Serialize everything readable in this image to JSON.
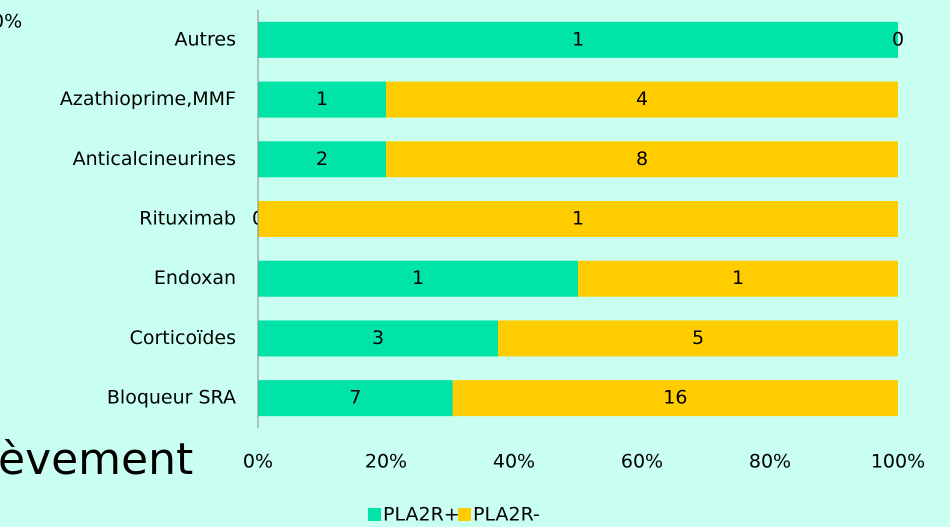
{
  "chart_data": {
    "type": "bar",
    "orientation": "horizontal",
    "stacking": "percent",
    "categories": [
      "Autres",
      "Azathioprime,MMF",
      "Anticalcineurines",
      "Rituximab",
      "Endoxan",
      "Corticoïdes",
      "Bloqueur SRA"
    ],
    "series": [
      {
        "name": "PLA2R+",
        "color": "#00e4a8",
        "values": [
          1,
          1,
          2,
          0,
          1,
          3,
          7
        ]
      },
      {
        "name": "PLA2R-",
        "color": "#ffcc00",
        "values": [
          0,
          4,
          8,
          1,
          1,
          5,
          16
        ]
      }
    ],
    "xlim": [
      0,
      100
    ],
    "xticks": [
      {
        "value": 0,
        "label": "0%"
      },
      {
        "value": 20,
        "label": "20%"
      },
      {
        "value": 40,
        "label": "40%"
      },
      {
        "value": 60,
        "label": "60%"
      },
      {
        "value": 80,
        "label": "80%"
      },
      {
        "value": 100,
        "label": "100%"
      }
    ],
    "legend": "bottom",
    "annotations": [
      "0%",
      "èvement"
    ]
  }
}
